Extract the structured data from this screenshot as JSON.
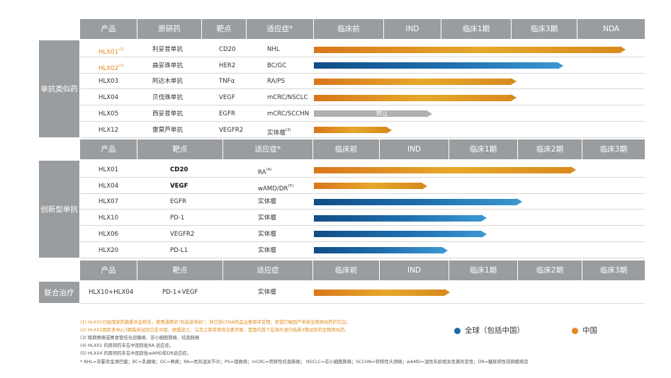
{
  "header1": [
    "产品",
    "原研药",
    "靶点",
    "适应症*",
    "临床前",
    "IND",
    "临床1期",
    "临床3期",
    "NDA"
  ],
  "header2": [
    "产品",
    "靶点",
    "适应症*",
    "临床前",
    "IND",
    "临床1期",
    "临床2期",
    "临床3期"
  ],
  "header3": [
    "产品",
    "靶点",
    "适应症",
    "临床前",
    "IND",
    "临床1期",
    "临床2期",
    "临床3期"
  ],
  "section1_label": "单抗类似药",
  "section2_label": "创新型单抗",
  "section3_label": "联合治疗",
  "section1_rows": [
    {
      "product": "HLX01",
      "sup": "(1)",
      "drug": "利妥昔单抗",
      "target": "CD20",
      "indication": "NHL",
      "ind_sup": ""
    },
    {
      "product": "HLX02",
      "sup": "(2)",
      "drug": "曲妥珠单抗",
      "target": "HER2",
      "indication": "BC/GC",
      "ind_sup": ""
    },
    {
      "product": "HLX03",
      "sup": "",
      "drug": "阿达木单抗",
      "target": "TNFα",
      "indication": "RA/PS",
      "ind_sup": ""
    },
    {
      "product": "HLX04",
      "sup": "",
      "drug": "贝伐珠单抗",
      "target": "VEGF",
      "indication": "mCRC/NSCLC",
      "ind_sup": ""
    },
    {
      "product": "HLX05",
      "sup": "",
      "drug": "西妥昔单抗",
      "target": "EGFR",
      "indication": "mCRC/SCCHN",
      "ind_sup": ""
    },
    {
      "product": "HLX12",
      "sup": "",
      "drug": "雷莫芦单抗",
      "target": "VEGFR2",
      "indication": "实体瘤",
      "ind_sup": "(3)"
    }
  ],
  "section2_rows": [
    {
      "product": "HLX01",
      "target": "CD20",
      "indication": "RA",
      "ind_sup": "(4)"
    },
    {
      "product": "HLX04",
      "target": "VEGF",
      "indication": "wAMD/DR",
      "ind_sup": "(5)"
    },
    {
      "product": "HLX07",
      "target": "EGFR",
      "indication": "实体瘤",
      "ind_sup": ""
    },
    {
      "product": "HLX10",
      "target": "PD-1",
      "indication": "实体瘤",
      "ind_sup": ""
    },
    {
      "product": "HLX06",
      "target": "VEGFR2",
      "indication": "实体瘤",
      "ind_sup": ""
    },
    {
      "product": "HLX20",
      "target": "PD-L1",
      "indication": "实体瘤",
      "ind_sup": ""
    }
  ],
  "section3_rows": [
    {
      "product": "HLX10+HLX04",
      "target": "PD-1+VEGF",
      "indication": "实体瘤"
    }
  ],
  "bar_label_transfer": "转让",
  "notes": [
    "(1) HLX01已经国家药典委员会核名，使用通用名\"利妥昔单抗\"；并已获CFDA药品注册审评受理，有望打破国产单抗生物类似药的空白。",
    "(2) HLX02国际多中心3期临床试验已在中国、欧盟波兰、乌克兰和菲律宾全面开展，是国内首个在海外进行临床3期试验的生物类似药。",
    "(3) 晚期胃癌或胃食管结合部腺癌、非小细胞肺癌、结直肠癌",
    "(4) HLX01 的原研药未在中国获批RA 适应症。",
    "(5) HLX04 的原研药未在中国获批wAMD和DR适应症。",
    "*   NHL=非霍奇金淋巴瘤；BC=乳腺癌；GC=胃癌；RA=类风湿关节炎；PS=银屑病；mCRC=转移性结直肠癌；  NSCLC=非小细胞肺癌；SCCHN=转移性头颈癌；wAMD=湿性年龄相关性黄斑变性；DR=糖尿病性视网膜病变"
  ],
  "legend": {
    "global": "全球（包括中国）",
    "china": "中国"
  },
  "colors": {
    "header": "#999da0",
    "orange_text": "#e08a1e",
    "global_blue": "#1a6aa6",
    "china_orange": "#e08a1e",
    "gray_bar": "#b0b0b0"
  },
  "progress": {
    "section1": [
      {
        "type": "china",
        "stage_fraction": 1.0
      },
      {
        "type": "global",
        "stage_fraction": 0.8
      },
      {
        "type": "china",
        "stage_fraction": 0.65
      },
      {
        "type": "china",
        "stage_fraction": 0.65
      },
      {
        "type": "gray",
        "stage_fraction": 0.38
      },
      {
        "type": "china",
        "stage_fraction": 0.25
      }
    ],
    "section2": [
      {
        "type": "china",
        "stage_fraction": 0.88
      },
      {
        "type": "china",
        "stage_fraction": 0.38
      },
      {
        "type": "global",
        "stage_fraction": 0.7
      },
      {
        "type": "global",
        "stage_fraction": 0.58
      },
      {
        "type": "global",
        "stage_fraction": 0.58
      },
      {
        "type": "global",
        "stage_fraction": 0.45
      }
    ],
    "section3": [
      {
        "type": "china",
        "stage_fraction": 0.4
      }
    ]
  }
}
